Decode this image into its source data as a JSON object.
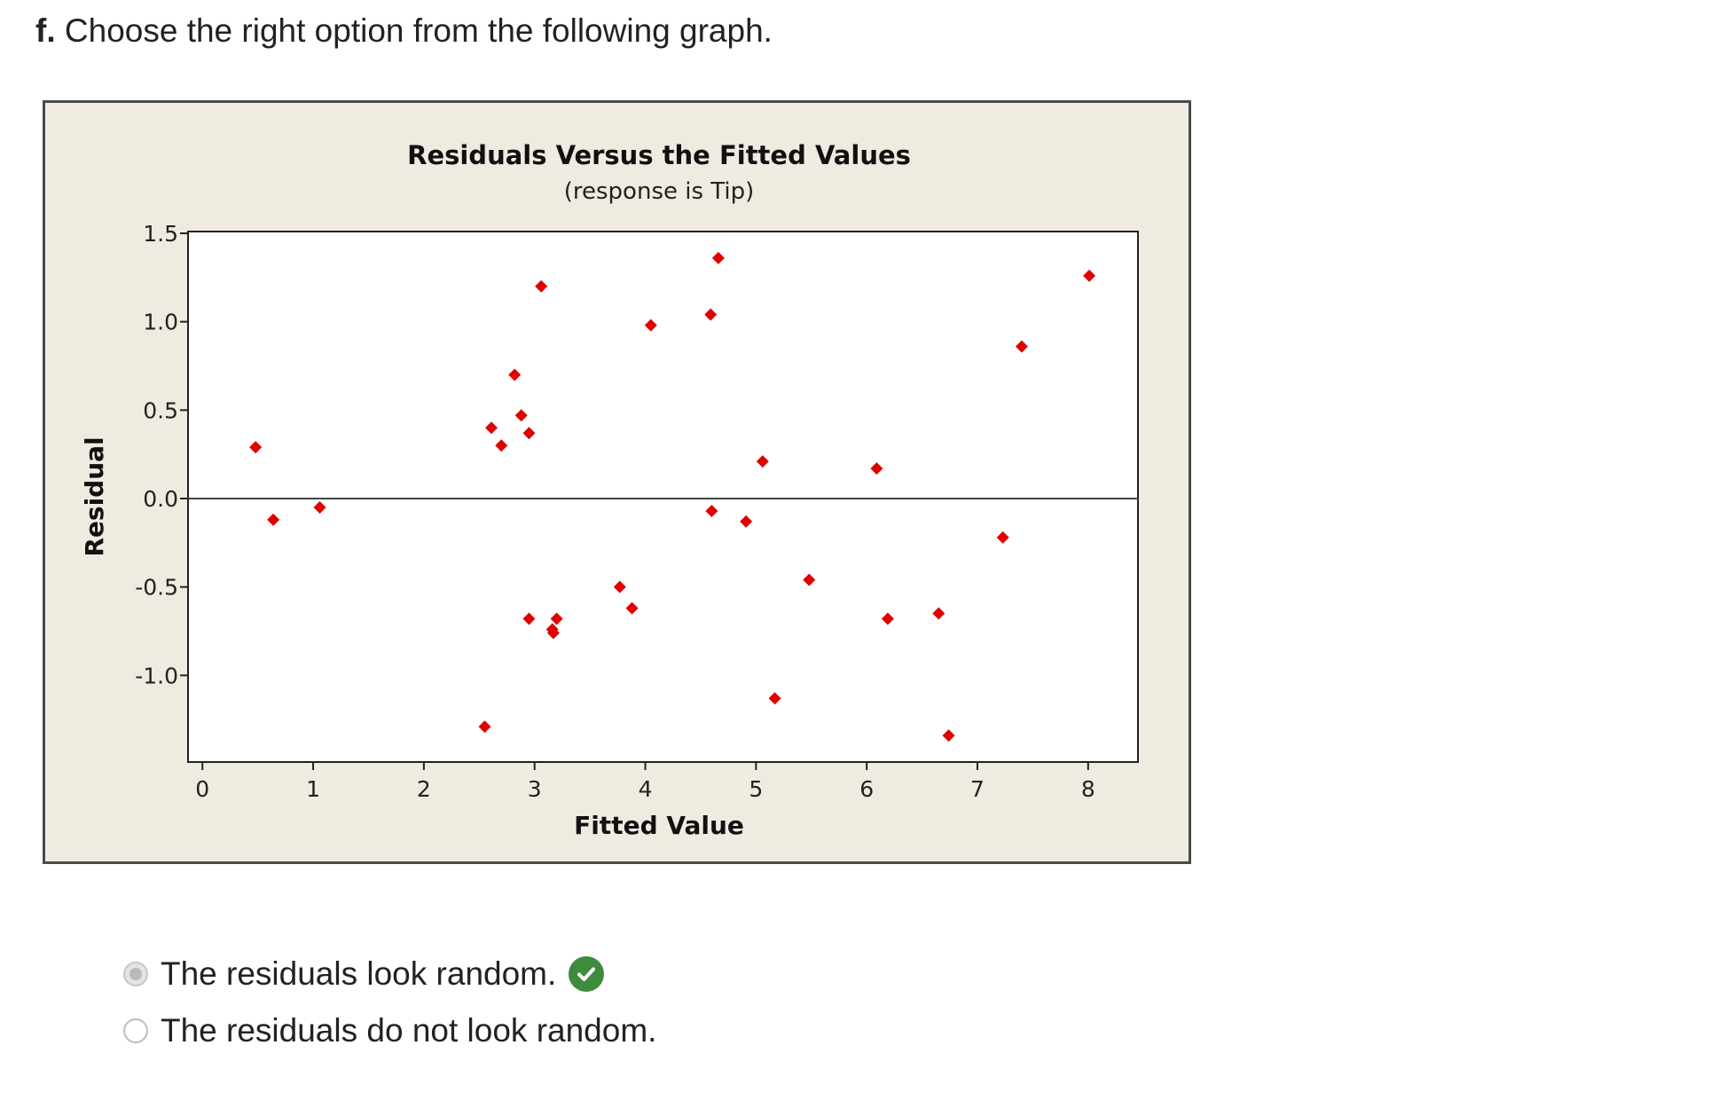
{
  "question": {
    "prefix": "f.",
    "text": "Choose the right option from the following graph."
  },
  "chart_data": {
    "type": "scatter",
    "title": "Residuals Versus the Fitted Values",
    "subtitle": "(response is Tip)",
    "xlabel": "Fitted Value",
    "ylabel": "Residual",
    "xlim": [
      -0.13,
      8.45
    ],
    "ylim": [
      -1.49,
      1.51
    ],
    "xticks": [
      0,
      1,
      2,
      3,
      4,
      5,
      6,
      7,
      8
    ],
    "yticks": [
      1.5,
      1.0,
      0.5,
      0.0,
      -0.5,
      -1.0
    ],
    "ytick_labels": [
      "1.5",
      "1.0",
      "0.5",
      "0.0",
      "-0.5",
      "-1.0"
    ],
    "reference_line_y": 0.0,
    "marker_color": "#e00000",
    "points": [
      {
        "x": 0.48,
        "y": 0.29
      },
      {
        "x": 0.64,
        "y": -0.12
      },
      {
        "x": 1.06,
        "y": -0.05
      },
      {
        "x": 2.55,
        "y": -1.29
      },
      {
        "x": 2.61,
        "y": 0.4
      },
      {
        "x": 2.7,
        "y": 0.3
      },
      {
        "x": 2.82,
        "y": 0.7
      },
      {
        "x": 2.88,
        "y": 0.47
      },
      {
        "x": 2.95,
        "y": 0.37
      },
      {
        "x": 2.95,
        "y": -0.68
      },
      {
        "x": 3.06,
        "y": 1.2
      },
      {
        "x": 3.16,
        "y": -0.74
      },
      {
        "x": 3.17,
        "y": -0.76
      },
      {
        "x": 3.2,
        "y": -0.68
      },
      {
        "x": 3.77,
        "y": -0.5
      },
      {
        "x": 3.88,
        "y": -0.62
      },
      {
        "x": 4.05,
        "y": 0.98
      },
      {
        "x": 4.59,
        "y": 1.04
      },
      {
        "x": 4.6,
        "y": -0.07
      },
      {
        "x": 4.66,
        "y": 1.36
      },
      {
        "x": 4.91,
        "y": -0.13
      },
      {
        "x": 5.06,
        "y": 0.21
      },
      {
        "x": 5.17,
        "y": -1.13
      },
      {
        "x": 5.48,
        "y": -0.46
      },
      {
        "x": 6.09,
        "y": 0.17
      },
      {
        "x": 6.19,
        "y": -0.68
      },
      {
        "x": 6.65,
        "y": -0.65
      },
      {
        "x": 6.74,
        "y": -1.34
      },
      {
        "x": 7.23,
        "y": -0.22
      },
      {
        "x": 7.4,
        "y": 0.86
      },
      {
        "x": 8.01,
        "y": 1.26
      }
    ]
  },
  "options": [
    {
      "label": "The residuals look random.",
      "selected": true,
      "correct": true
    },
    {
      "label": "The residuals do not look random.",
      "selected": false,
      "correct": false
    }
  ],
  "icons": {
    "correct": "check-circle-icon",
    "color_correct": "#3d8b3d"
  }
}
